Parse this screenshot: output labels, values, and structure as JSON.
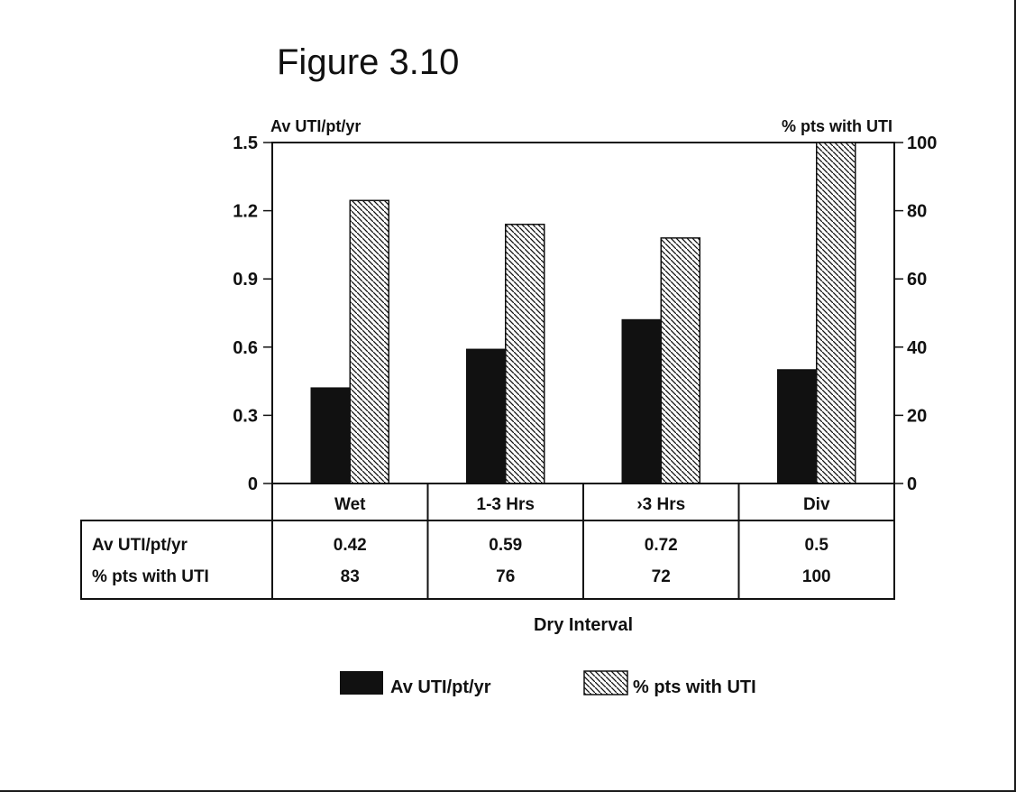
{
  "chart_data": {
    "type": "bar",
    "title": "Figure 3.10",
    "xlabel": "Dry Interval",
    "categories": [
      "Wet",
      "1-3 Hrs",
      "›3 Hrs",
      "Div"
    ],
    "y_left": {
      "label": "Av UTI/pt/yr",
      "lim": [
        0,
        1.5
      ],
      "ticks": [
        "0",
        "0.3",
        "0.6",
        "0.9",
        "1.2",
        "1.5"
      ]
    },
    "y_right": {
      "label": "% pts with UTI",
      "lim": [
        0,
        100
      ],
      "ticks": [
        "0",
        "20",
        "40",
        "60",
        "80",
        "100"
      ]
    },
    "series": [
      {
        "name": "Av UTI/pt/yr",
        "axis": "left",
        "style": "solid",
        "color": "#111111",
        "values": [
          0.42,
          0.59,
          0.72,
          0.5
        ],
        "table_values": [
          "0.42",
          "0.59",
          "0.72",
          "0.5"
        ]
      },
      {
        "name": "% pts with UTI",
        "axis": "right",
        "style": "hatched",
        "color": "#111111",
        "values": [
          83,
          76,
          72,
          100
        ],
        "table_values": [
          "83",
          "76",
          "72",
          "100"
        ]
      }
    ],
    "legend": "bottom-center",
    "grid": false
  }
}
